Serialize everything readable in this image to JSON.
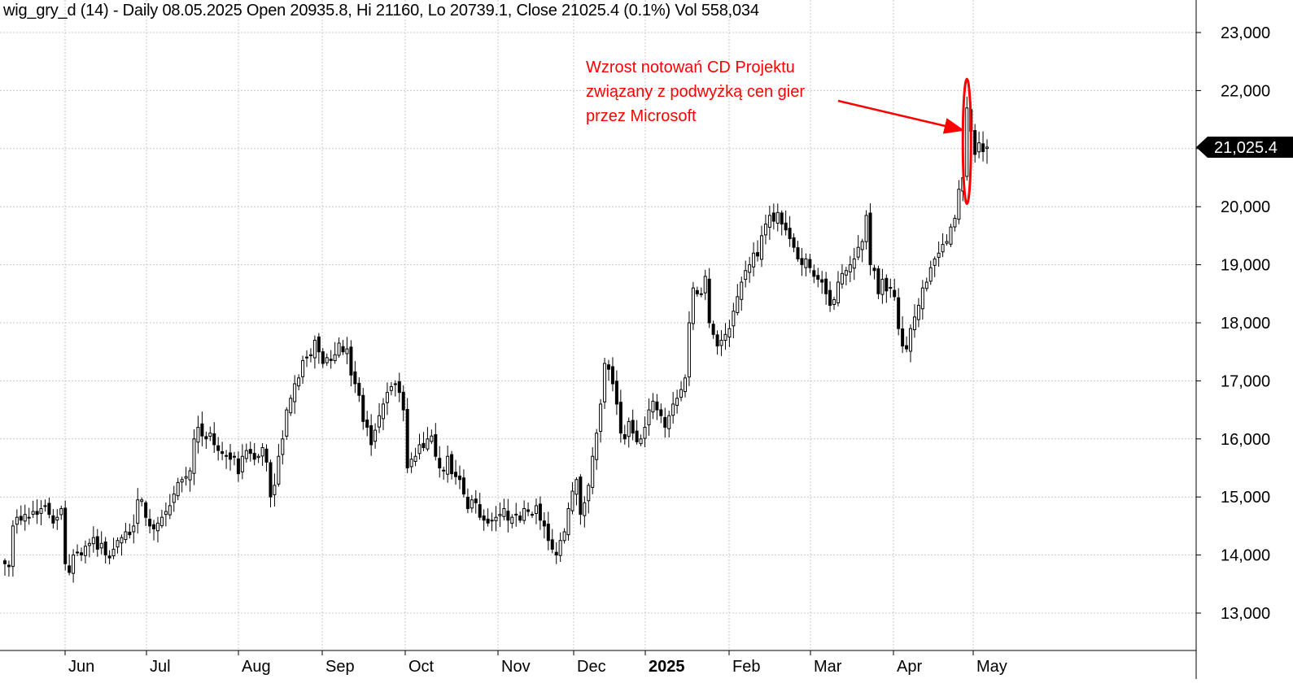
{
  "header": {
    "title": "wig_gry_d (14) - Daily 08.05.2025 Open 20935.8, Hi 21160, Lo 20739.1, Close 21025.4 (0.1%) Vol 558,034"
  },
  "annotation": {
    "lines": [
      "Wzrost notowań CD Projektu",
      "związany z podwyżką cen gier",
      "przez Microsoft"
    ]
  },
  "price_tag": "21,025.4",
  "colors": {
    "background": "#ffffff",
    "candle": "#000000",
    "annotation": "#ff0000",
    "grid": "#c8c8c8"
  },
  "chart_data": {
    "type": "candlestick",
    "symbol": "wig_gry_d (14)",
    "interval": "Daily",
    "last_bar": {
      "date": "08.05.2025",
      "open": 20935.8,
      "high": 21160,
      "low": 20739.1,
      "close": 21025.4,
      "change_pct": "0.1%",
      "volume": "558,034"
    },
    "y_axis": {
      "side": "right",
      "range": [
        12300,
        23600
      ],
      "ticks": [
        13000,
        14000,
        15000,
        16000,
        17000,
        18000,
        19000,
        20000,
        21000,
        22000,
        23000
      ],
      "tick_labels": [
        "13,000",
        "14,000",
        "15,000",
        "16,000",
        "17,000",
        "18,000",
        "19,000",
        "20,000",
        "22,000",
        "23,000"
      ]
    },
    "x_axis": {
      "labels": [
        "Jun",
        "Jul",
        "Aug",
        "Sep",
        "Oct",
        "Nov",
        "Dec",
        "2025",
        "Feb",
        "Mar",
        "Apr",
        "May"
      ],
      "bold_label": "2025"
    },
    "grid": true,
    "last_price_marker": 21025.4,
    "highlight": {
      "shape": "ellipse",
      "color": "#ff0000",
      "range_low": 20050,
      "range_high": 22200
    },
    "series_closes": [
      13850,
      13800,
      14500,
      14650,
      14600,
      14700,
      14650,
      14750,
      14700,
      14800,
      14850,
      14700,
      14550,
      14650,
      14800,
      13850,
      13700,
      14000,
      14050,
      14000,
      14150,
      14200,
      14300,
      14100,
      14200,
      14000,
      13950,
      14100,
      14250,
      14300,
      14400,
      14350,
      14500,
      14950,
      14950,
      14650,
      14500,
      14450,
      14550,
      14650,
      14750,
      14850,
      15050,
      15250,
      15300,
      15350,
      15450,
      16000,
      16200,
      16050,
      16000,
      16100,
      15900,
      15800,
      15750,
      15700,
      15650,
      15700,
      15400,
      15700,
      15800,
      15750,
      15650,
      15700,
      15850,
      15600,
      15000,
      15200,
      15700,
      16000,
      16500,
      16700,
      16950,
      17050,
      17350,
      17400,
      17450,
      17700,
      17500,
      17300,
      17400,
      17350,
      17450,
      17650,
      17500,
      17550,
      17100,
      16950,
      16750,
      16300,
      16200,
      15900,
      16150,
      16400,
      16600,
      16800,
      16900,
      16950,
      16800,
      16500,
      15500,
      15650,
      15700,
      15900,
      15850,
      16000,
      16050,
      15700,
      15500,
      15450,
      15700,
      15400,
      15350,
      15300,
      15050,
      14800,
      14950,
      14900,
      14650,
      14600,
      14550,
      14600,
      14650,
      14700,
      14800,
      14600,
      14650,
      14700,
      14600,
      14800,
      14750,
      14700,
      14850,
      14600,
      14500,
      14250,
      14100,
      14000,
      14250,
      14400,
      14800,
      15100,
      15300,
      14700,
      14900,
      15200,
      15700,
      16100,
      16600,
      17300,
      17200,
      16950,
      16600,
      16100,
      16000,
      16300,
      16100,
      15950,
      16000,
      16200,
      16500,
      16650,
      16500,
      16400,
      16200,
      16400,
      16600,
      16700,
      16850,
      17050,
      18000,
      18600,
      18500,
      18500,
      18800,
      18000,
      17800,
      17600,
      17700,
      17800,
      17900,
      18200,
      18450,
      18700,
      18900,
      19000,
      19200,
      19150,
      19500,
      19700,
      19850,
      19750,
      19900,
      19700,
      19600,
      19450,
      19300,
      19100,
      19000,
      19100,
      18950,
      18800,
      18750,
      18700,
      18500,
      18300,
      18400,
      18700,
      18850,
      18900,
      19000,
      19100,
      19300,
      19400,
      19850,
      19000,
      18900,
      18500,
      18750,
      18550,
      18600,
      18450,
      17900,
      17600,
      17550,
      17900,
      18100,
      18300,
      18600,
      18700,
      18950,
      19100,
      19200,
      19350,
      19400,
      19650,
      19800,
      20300,
      20500,
      21700,
      21300,
      20900,
      21100,
      20950,
      21025.4
    ]
  }
}
